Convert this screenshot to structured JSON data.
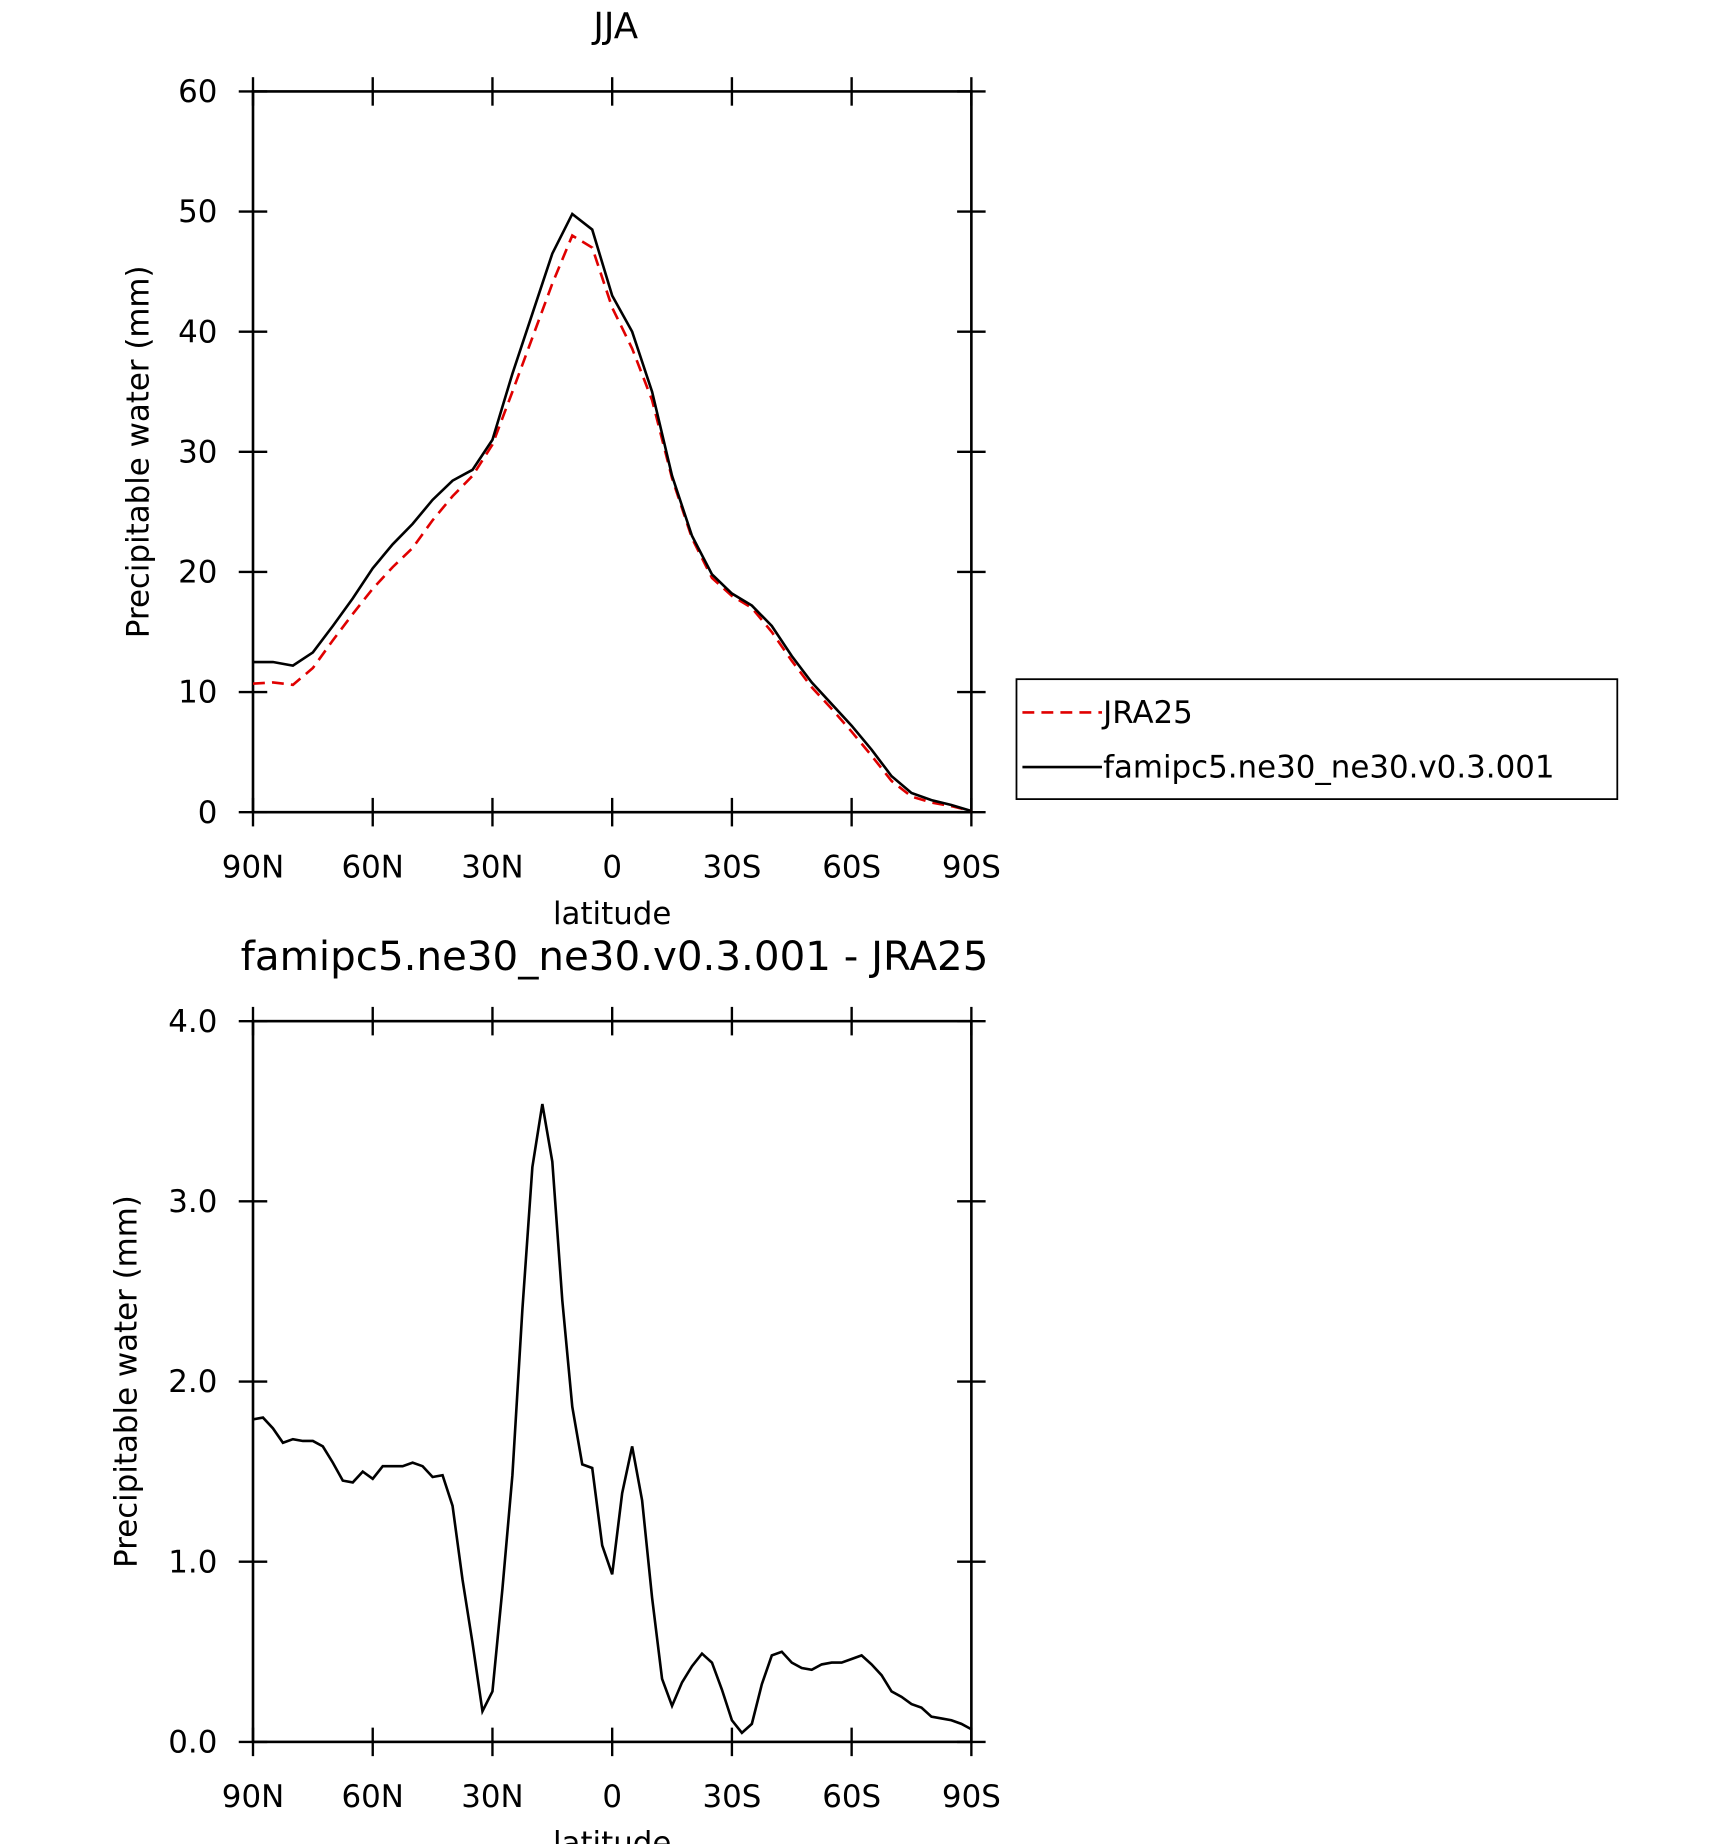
{
  "chart_data": [
    {
      "type": "line",
      "title": "JJA",
      "xlabel": "latitude",
      "ylabel": "Precipitable water (mm)",
      "x": [
        90,
        85,
        80,
        75,
        70,
        65,
        60,
        55,
        50,
        45,
        40,
        35,
        30,
        25,
        20,
        15,
        10,
        5,
        0,
        -5,
        -10,
        -15,
        -20,
        -25,
        -30,
        -35,
        -40,
        -45,
        -50,
        -55,
        -60,
        -65,
        -70,
        -75,
        -80,
        -85,
        -90
      ],
      "series": [
        {
          "name": "JRA25",
          "color": "#e00000",
          "dash": "dashed",
          "values": [
            10.7,
            10.8,
            10.6,
            12,
            14.3,
            16.5,
            18.6,
            20.4,
            22.0,
            24.3,
            26.3,
            28,
            30.6,
            35,
            39.5,
            44,
            48,
            47,
            42,
            38.6,
            34.3,
            27.8,
            22.8,
            19.5,
            18,
            17,
            15,
            12.6,
            10.4,
            8.6,
            6.7,
            4.7,
            2.6,
            1.3,
            0.8,
            0.5,
            0.1
          ]
        },
        {
          "name": "famipc5.ne30_ne30.v0.3.001",
          "color": "#000000",
          "dash": "solid",
          "values": [
            12.5,
            12.5,
            12.2,
            13.3,
            15.5,
            17.8,
            20.3,
            22.3,
            24.0,
            26.0,
            27.6,
            28.5,
            31.0,
            36.5,
            41.5,
            46.5,
            49.8,
            48.5,
            43,
            40,
            35,
            28,
            23,
            19.8,
            18.2,
            17.2,
            15.5,
            13,
            10.8,
            9,
            7.2,
            5.2,
            3,
            1.6,
            1.0,
            0.6,
            0.1
          ]
        }
      ],
      "xlim": [
        90,
        -90
      ],
      "xticks": [
        {
          "value": 90,
          "label": "90N"
        },
        {
          "value": 60,
          "label": "60N"
        },
        {
          "value": 30,
          "label": "30N"
        },
        0,
        {
          "value": -30,
          "label": "30S"
        },
        {
          "value": -60,
          "label": "60S"
        },
        {
          "value": -90,
          "label": "90S"
        }
      ],
      "ylim": [
        0,
        60
      ],
      "yticks": [
        0,
        10,
        20,
        30,
        40,
        50,
        60
      ],
      "legend": "right"
    },
    {
      "type": "line",
      "title": "famipc5.ne30_ne30.v0.3.001 - JRA25",
      "xlabel": "latitude",
      "ylabel": "Precipitable water (mm)",
      "x": [
        90,
        87.5,
        85,
        82.5,
        80,
        77.5,
        75,
        72.5,
        70,
        67.5,
        65,
        62.5,
        60,
        57.5,
        55,
        52.5,
        50,
        47.5,
        45,
        42.5,
        40,
        37.5,
        35,
        32.5,
        30,
        27.5,
        25,
        22.5,
        20,
        17.5,
        15,
        12.5,
        10,
        7.5,
        5,
        2.5,
        0,
        -2.5,
        -5,
        -7.5,
        -10,
        -12.5,
        -15,
        -17.5,
        -20,
        -22.5,
        -25,
        -27.5,
        -30,
        -32.5,
        -35,
        -37.5,
        -40,
        -42.5,
        -45,
        -47.5,
        -50,
        -52.5,
        -55,
        -57.5,
        -60,
        -62.5,
        -65,
        -67.5,
        -70,
        -72.5,
        -75,
        -77.5,
        -80,
        -82.5,
        -85,
        -87.5,
        -90
      ],
      "series": [
        {
          "color": "#000000",
          "dash": "solid",
          "values": [
            1.79,
            1.8,
            1.74,
            1.66,
            1.68,
            1.67,
            1.67,
            1.64,
            1.55,
            1.45,
            1.44,
            1.5,
            1.46,
            1.53,
            1.53,
            1.53,
            1.55,
            1.53,
            1.47,
            1.48,
            1.31,
            0.9,
            0.55,
            0.17,
            0.28,
            0.85,
            1.48,
            2.4,
            3.19,
            3.54,
            3.22,
            2.45,
            1.86,
            1.54,
            1.52,
            1.09,
            0.93,
            1.38,
            1.64,
            1.34,
            0.8,
            0.35,
            0.2,
            0.33,
            0.42,
            0.49,
            0.44,
            0.29,
            0.12,
            0.05,
            0.1,
            0.32,
            0.48,
            0.5,
            0.44,
            0.41,
            0.4,
            0.43,
            0.44,
            0.44,
            0.46,
            0.48,
            0.43,
            0.37,
            0.28,
            0.25,
            0.21,
            0.19,
            0.14,
            0.13,
            0.12,
            0.1,
            0.07
          ]
        }
      ],
      "xlim": [
        90,
        -90
      ],
      "xticks": [
        {
          "value": 90,
          "label": "90N"
        },
        {
          "value": 60,
          "label": "60N"
        },
        {
          "value": 30,
          "label": "30N"
        },
        0,
        {
          "value": -30,
          "label": "30S"
        },
        {
          "value": -60,
          "label": "60S"
        },
        {
          "value": -90,
          "label": "90S"
        }
      ],
      "ylim": [
        0,
        4
      ],
      "yticks": [
        {
          "value": 0,
          "label": "0.0"
        },
        {
          "value": 1,
          "label": "1.0"
        },
        {
          "value": 2,
          "label": "2.0"
        },
        {
          "value": 3,
          "label": "3.0"
        },
        {
          "value": 4,
          "label": "4.0"
        }
      ]
    }
  ]
}
